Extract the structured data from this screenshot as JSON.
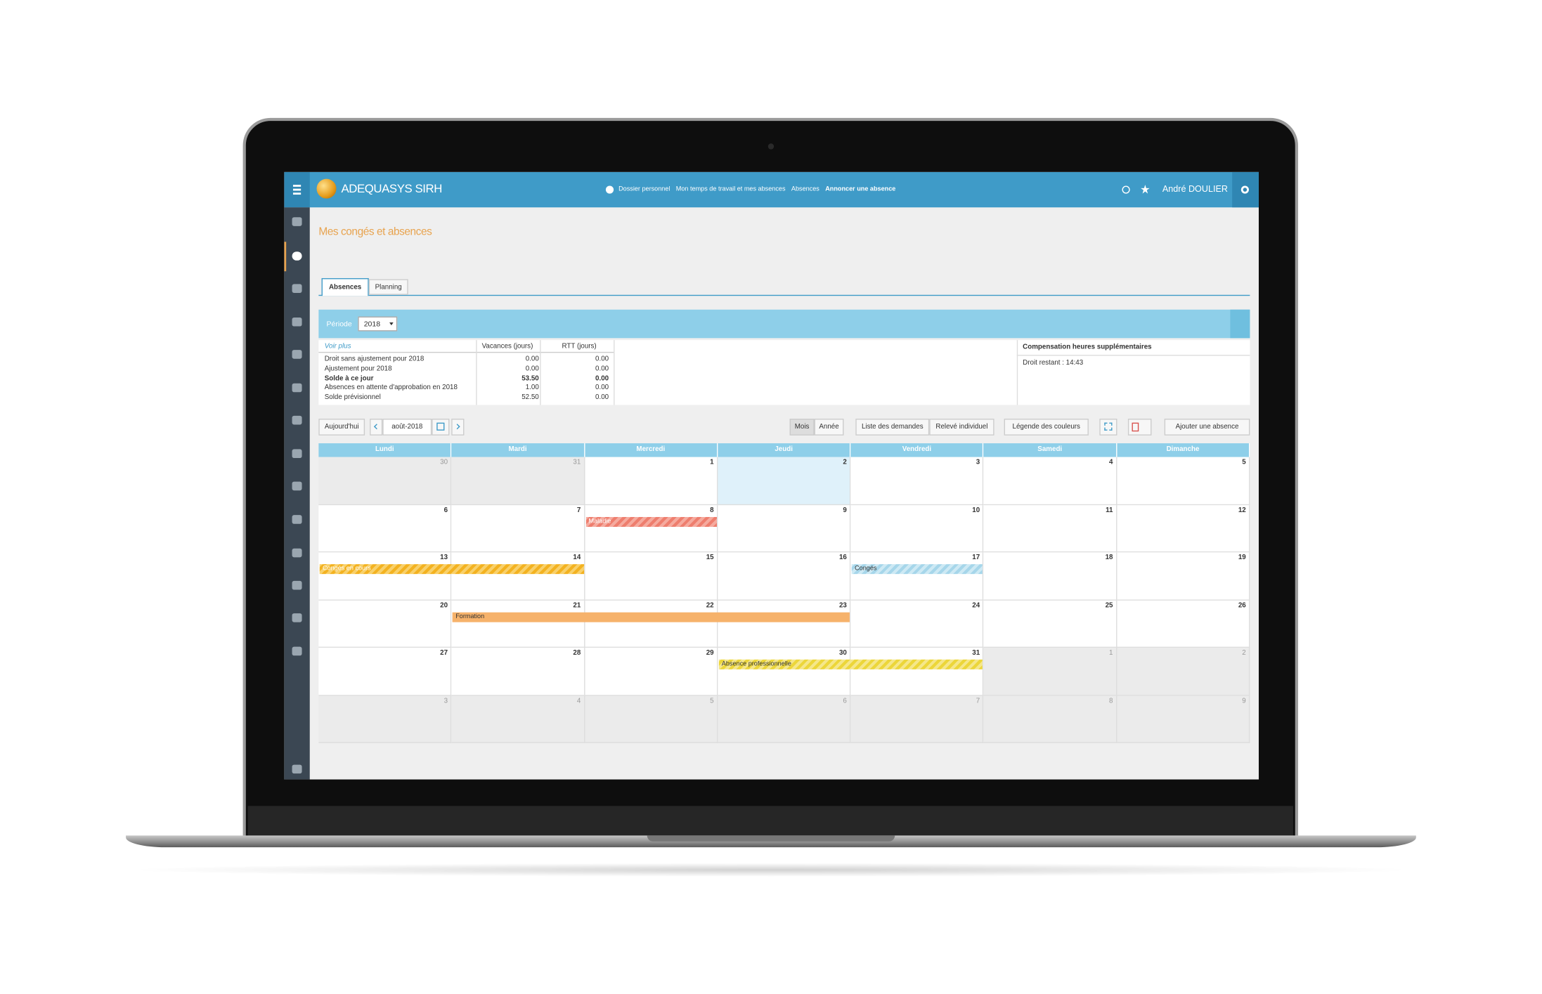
{
  "header": {
    "app_name": "ADEQUASYS SIRH",
    "breadcrumb": [
      "Dossier personnel",
      "Mon temps de travail et mes absences",
      "Absences",
      "Annoncer une absence"
    ],
    "user": "André DOULIER"
  },
  "page": {
    "title": "Mes congés et absences",
    "tabs": [
      "Absences",
      "Planning"
    ]
  },
  "period": {
    "label": "Période",
    "value": "2018"
  },
  "summary": {
    "columns": [
      "Voir plus",
      "Vacances (jours)",
      "RTT (jours)"
    ],
    "rows": [
      [
        "Droit sans ajustement pour 2018",
        "0.00",
        "0.00"
      ],
      [
        "Ajustement pour 2018",
        "0.00",
        "0.00"
      ],
      [
        "Solde à ce jour",
        "53.50",
        "0.00"
      ],
      [
        "Absences en attente d'approbation en 2018",
        "1.00",
        "0.00"
      ],
      [
        "Solde prévisionnel",
        "52.50",
        "0.00"
      ]
    ]
  },
  "compensation": {
    "title": "Compensation heures supplémentaires",
    "text": "Droit restant : 14:43"
  },
  "toolbar": {
    "today": "Aujourd'hui",
    "month": "août-2018",
    "views": [
      "Mois",
      "Année"
    ],
    "lists": [
      "Liste des demandes",
      "Relevé individuel"
    ],
    "legend": "Légende des couleurs",
    "add": "Ajouter une absence"
  },
  "calendar": {
    "weekdays": [
      "Lundi",
      "Mardi",
      "Mercredi",
      "Jeudi",
      "Vendredi",
      "Samedi",
      "Dimanche"
    ],
    "weeks": [
      [
        30,
        31,
        1,
        2,
        3,
        4,
        5
      ],
      [
        6,
        7,
        8,
        9,
        10,
        11,
        12
      ],
      [
        13,
        14,
        15,
        16,
        17,
        18,
        19
      ],
      [
        20,
        21,
        22,
        23,
        24,
        25,
        26
      ],
      [
        27,
        28,
        29,
        30,
        31,
        1,
        2
      ],
      [
        3,
        4,
        5,
        6,
        7,
        8,
        9
      ]
    ],
    "events": [
      "Maladie",
      "Congés en cours",
      "Congés",
      "Formation",
      "Absence professionnelle"
    ]
  }
}
